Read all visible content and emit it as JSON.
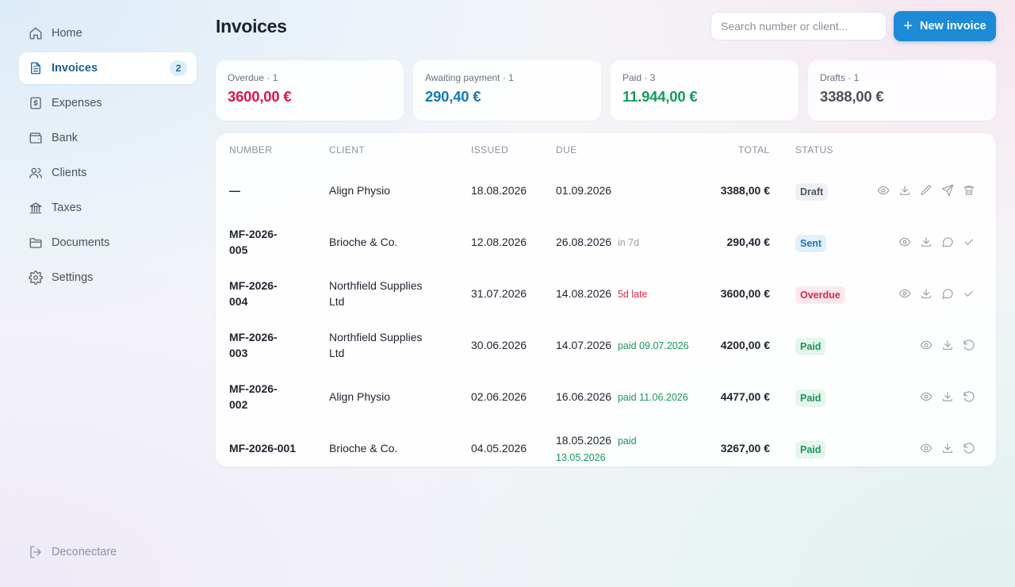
{
  "sidebar": {
    "items": [
      {
        "label": "Home",
        "icon": "home-icon"
      },
      {
        "label": "Invoices",
        "icon": "file-text-icon",
        "badge": "2",
        "active": true
      },
      {
        "label": "Expenses",
        "icon": "dollar-receipt-icon"
      },
      {
        "label": "Bank",
        "icon": "wallet-icon"
      },
      {
        "label": "Clients",
        "icon": "users-icon"
      },
      {
        "label": "Taxes",
        "icon": "bank-building-icon"
      },
      {
        "label": "Documents",
        "icon": "folder-icon"
      },
      {
        "label": "Settings",
        "icon": "gear-icon"
      }
    ],
    "logout_label": "Deconectare"
  },
  "header": {
    "title": "Invoices",
    "search_placeholder": "Search number or client...",
    "new_button_label": "New invoice",
    "new_button_icon": "plus-icon"
  },
  "summary": [
    {
      "label": "Overdue · 1",
      "value": "3600,00 €",
      "color": "#d9164b"
    },
    {
      "label": "Awaiting payment · 1",
      "value": "290,40 €",
      "color": "#1679b8"
    },
    {
      "label": "Paid · 3",
      "value": "11.944,00 €",
      "color": "#129a5c"
    },
    {
      "label": "Drafts · 1",
      "value": "3388,00 €",
      "color": "#4a505c"
    }
  ],
  "table": {
    "columns": {
      "number": "NUMBER",
      "client": "CLIENT",
      "issued": "ISSUED",
      "due": "DUE",
      "total": "TOTAL",
      "status": "STATUS"
    },
    "rows": [
      {
        "number": "—",
        "client": "Align Physio",
        "issued": "18.08.2026",
        "due": "01.09.2026",
        "note": "",
        "note_type": "",
        "total": "3388,00 €",
        "status": "Draft",
        "status_type": "draft",
        "actions": [
          "eye-icon",
          "download-icon",
          "pencil-icon",
          "send-icon",
          "trash-icon"
        ]
      },
      {
        "number": "MF-2026-005",
        "client": "Brioche & Co.",
        "issued": "12.08.2026",
        "due": "26.08.2026",
        "note": "in 7d",
        "note_type": "grey",
        "total": "290,40 €",
        "status": "Sent",
        "status_type": "sent",
        "actions": [
          "eye-icon",
          "download-icon",
          "chat-icon",
          "check-icon"
        ]
      },
      {
        "number": "MF-2026-004",
        "client": "Northfield Supplies Ltd",
        "issued": "31.07.2026",
        "due": "14.08.2026",
        "note": "5d late",
        "note_type": "red",
        "total": "3600,00 €",
        "status": "Overdue",
        "status_type": "overdue",
        "actions": [
          "eye-icon",
          "download-icon",
          "chat-icon",
          "check-icon"
        ]
      },
      {
        "number": "MF-2026-003",
        "client": "Northfield Supplies Ltd",
        "issued": "30.06.2026",
        "due": "14.07.2026",
        "note": "paid 09.07.2026",
        "note_type": "green",
        "total": "4200,00 €",
        "status": "Paid",
        "status_type": "paid",
        "actions": [
          "eye-icon",
          "download-icon",
          "undo-icon"
        ]
      },
      {
        "number": "MF-2026-002",
        "client": "Align Physio",
        "issued": "02.06.2026",
        "due": "16.06.2026",
        "note": "paid 11.06.2026",
        "note_type": "green",
        "total": "4477,00 €",
        "status": "Paid",
        "status_type": "paid",
        "actions": [
          "eye-icon",
          "download-icon",
          "undo-icon"
        ]
      },
      {
        "number": "MF-2026-001",
        "client": "Brioche & Co.",
        "issued": "04.05.2026",
        "due": "18.05.2026",
        "note": "paid 13.05.2026",
        "note_type": "green",
        "total": "3267,00 €",
        "status": "Paid",
        "status_type": "paid",
        "actions": [
          "eye-icon",
          "download-icon",
          "undo-icon"
        ]
      }
    ]
  }
}
